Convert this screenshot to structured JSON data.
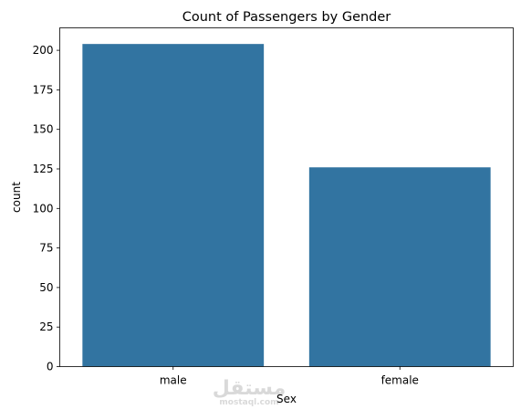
{
  "chart_data": {
    "type": "bar",
    "title": "Count of Passengers by Gender",
    "xlabel": "Sex",
    "ylabel": "count",
    "categories": [
      "male",
      "female"
    ],
    "values": [
      204,
      126
    ],
    "ylim": [
      0,
      214.2
    ],
    "yticks": [
      0,
      25,
      50,
      75,
      100,
      125,
      150,
      175,
      200
    ],
    "grid": false,
    "bar_color": "#3274a1"
  },
  "watermark": {
    "arabic": "مستقل",
    "latin": "mostaql.com"
  }
}
